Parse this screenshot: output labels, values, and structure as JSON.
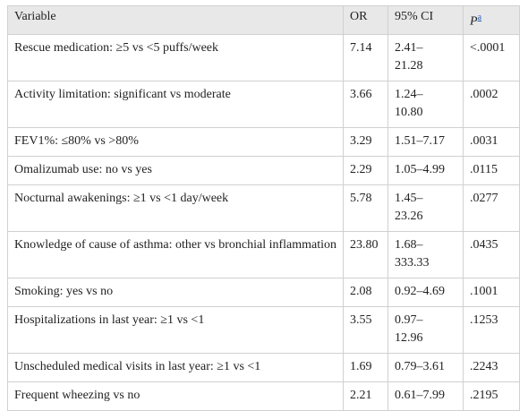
{
  "table": {
    "header": [
      "Variable",
      "OR",
      "95% CI",
      "P"
    ],
    "header_note": "a",
    "rows": [
      [
        "Rescue medication: ≥5 vs <5 puffs/week",
        "7.14",
        "2.41–21.28",
        "<.0001"
      ],
      [
        "Activity limitation: significant vs moderate",
        "3.66",
        "1.24–10.80",
        ".0002"
      ],
      [
        "FEV1%: ≤80% vs >80%",
        "3.29",
        "1.51–7.17",
        ".0031"
      ],
      [
        "Omalizumab use: no vs yes",
        "2.29",
        "1.05–4.99",
        ".0115"
      ],
      [
        "Nocturnal awakenings: ≥1 vs <1 day/week",
        "5.78",
        "1.45–23.26",
        ".0277"
      ],
      [
        "Knowledge of cause of asthma: other vs bronchial inflammation",
        "23.80",
        "1.68–333.33",
        ".0435"
      ],
      [
        "Smoking: yes vs no",
        "2.08",
        "0.92–4.69",
        ".1001"
      ],
      [
        "Hospitalizations in last year: ≥1 vs <1",
        "3.55",
        "0.97–12.96",
        ".1253"
      ],
      [
        "Unscheduled medical visits in last year: ≥1 vs <1",
        "1.69",
        "0.79–3.61",
        ".2243"
      ],
      [
        "Frequent wheezing vs no",
        "2.21",
        "0.61–7.99",
        ".2195"
      ]
    ]
  }
}
